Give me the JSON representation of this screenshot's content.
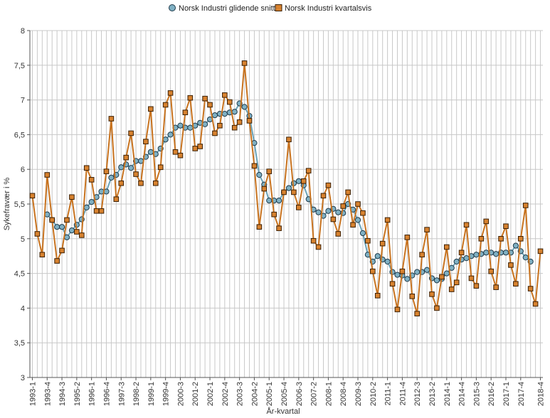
{
  "chart_data": {
    "type": "line",
    "title": "",
    "xlabel": "År-kvartal",
    "ylabel": "Sykefravær i %",
    "ylim": [
      3,
      8
    ],
    "yticks": [
      3,
      3.5,
      4,
      4.5,
      5,
      5.5,
      6,
      6.5,
      7,
      7.5,
      8
    ],
    "ytick_labels": [
      "3",
      "3,5",
      "4",
      "4,5",
      "5",
      "5,5",
      "6",
      "6,5",
      "7",
      "7,5",
      "8"
    ],
    "grid": true,
    "legend_position": "top",
    "x_start": "1993-1",
    "x_end": "2018-4",
    "x_tick_labels": [
      "1993-1",
      "1993-4",
      "1994-3",
      "1995-2",
      "1996-1",
      "1996-4",
      "1997-3",
      "1998-2",
      "1999-1",
      "1999-4",
      "2000-3",
      "2001-2",
      "2002-1",
      "2002-4",
      "2003-3",
      "2004-2",
      "2005-1",
      "2005-4",
      "2006-3",
      "2007-2",
      "2008-1",
      "2008-4",
      "2009-3",
      "2010-2",
      "2011-1",
      "2011-4",
      "2012-3",
      "2013-2",
      "2014-1",
      "2014-4",
      "2015-3",
      "2016-2",
      "2017-1",
      "2017-4",
      "2018-4"
    ],
    "series": [
      {
        "name": "Norsk Industri glidende snitt",
        "color": "#6aa3b8",
        "marker": "circle",
        "marker_fill": "#7fb0c3",
        "start": "1993-4",
        "values": [
          5.35,
          5.27,
          5.17,
          5.17,
          5.02,
          5.12,
          5.2,
          5.28,
          5.45,
          5.53,
          5.6,
          5.68,
          5.68,
          5.88,
          5.92,
          6.03,
          6.07,
          6.02,
          6.12,
          6.12,
          6.18,
          6.25,
          6.22,
          6.3,
          6.43,
          6.5,
          6.6,
          6.63,
          6.6,
          6.6,
          6.63,
          6.67,
          6.65,
          6.72,
          6.78,
          6.8,
          6.8,
          6.82,
          6.83,
          6.95,
          6.9,
          6.77,
          6.38,
          5.92,
          5.78,
          5.55,
          5.55,
          5.55,
          5.67,
          5.73,
          5.8,
          5.83,
          5.77,
          5.57,
          5.42,
          5.38,
          5.33,
          5.4,
          5.43,
          5.38,
          5.37,
          5.5,
          5.42,
          5.27,
          5.08,
          4.77,
          4.67,
          4.75,
          4.7,
          4.67,
          4.52,
          4.48,
          4.47,
          4.42,
          4.47,
          4.52,
          4.52,
          4.55,
          4.43,
          4.4,
          4.42,
          4.5,
          4.58,
          4.67,
          4.7,
          4.72,
          4.75,
          4.77,
          4.78,
          4.8,
          4.8,
          4.78,
          4.8,
          4.8,
          4.8,
          4.9,
          4.82,
          4.73,
          4.67
        ]
      },
      {
        "name": "Norsk Industri kvartalsvis",
        "color": "#c8731f",
        "marker": "square",
        "marker_fill": "#d7822f",
        "start": "1993-1",
        "values": [
          5.62,
          5.07,
          4.77,
          5.92,
          5.27,
          4.68,
          4.83,
          5.27,
          5.6,
          5.1,
          5.05,
          6.02,
          5.85,
          5.4,
          5.4,
          5.97,
          6.73,
          5.57,
          5.8,
          6.17,
          6.52,
          5.93,
          5.8,
          6.4,
          6.87,
          5.8,
          6.03,
          6.93,
          7.1,
          6.25,
          6.2,
          6.82,
          7.03,
          6.3,
          6.33,
          7.02,
          6.93,
          6.52,
          6.63,
          7.07,
          6.97,
          6.6,
          6.68,
          7.53,
          6.7,
          6.05,
          5.17,
          5.72,
          5.97,
          5.35,
          5.15,
          5.67,
          6.43,
          5.67,
          5.45,
          5.83,
          5.98,
          4.97,
          4.88,
          5.62,
          5.77,
          5.28,
          5.07,
          5.47,
          5.67,
          5.2,
          5.5,
          5.37,
          4.97,
          4.53,
          4.18,
          4.93,
          5.27,
          4.35,
          3.98,
          4.53,
          5.02,
          4.17,
          3.92,
          4.77,
          5.13,
          4.2,
          4.0,
          4.45,
          4.88,
          4.27,
          4.37,
          4.8,
          5.2,
          4.43,
          4.32,
          5.0,
          5.25,
          4.53,
          4.3,
          5.0,
          5.18,
          4.62,
          4.35,
          5.0,
          5.48,
          4.28,
          4.06,
          4.82
        ]
      }
    ]
  }
}
